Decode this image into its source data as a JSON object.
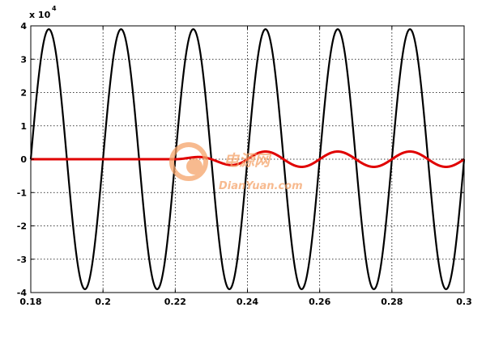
{
  "chart_data": {
    "type": "line",
    "title": "",
    "xlabel": "",
    "ylabel": "",
    "xlim": [
      0.18,
      0.3
    ],
    "ylim": [
      -4,
      4
    ],
    "y_exponent_label": "x 10",
    "y_exponent_power": "4",
    "x_ticks": [
      0.18,
      0.2,
      0.22,
      0.24,
      0.26,
      0.28,
      0.3
    ],
    "x_tick_labels": [
      "0.18",
      "0.2",
      "0.22",
      "0.24",
      "0.26",
      "0.28",
      "0.3"
    ],
    "y_ticks": [
      -4,
      -3,
      -2,
      -1,
      0,
      1,
      2,
      3,
      4
    ],
    "y_tick_labels": [
      "-4",
      "-3",
      "-2",
      "-1",
      "0",
      "1",
      "2",
      "3",
      "4"
    ],
    "grid": true,
    "grid_style": "dotted",
    "legend": "none",
    "series": [
      {
        "color": "#000000",
        "kind": "sine",
        "amplitude": 3.9,
        "frequency": 50,
        "phase_peak_x": 0.185,
        "x_start": 0.18,
        "x_end": 0.3
      },
      {
        "color": "#e00000",
        "kind": "sine",
        "amplitude": 0.23,
        "frequency": 50,
        "phase_peak_x": 0.245,
        "onset_x": 0.22,
        "ramp_end_x": 0.24,
        "x_start": 0.18,
        "x_end": 0.3
      }
    ]
  },
  "watermark": {
    "cn_text": "电源网",
    "en_text": "DianYuan.com",
    "color": "#f5a46a"
  }
}
